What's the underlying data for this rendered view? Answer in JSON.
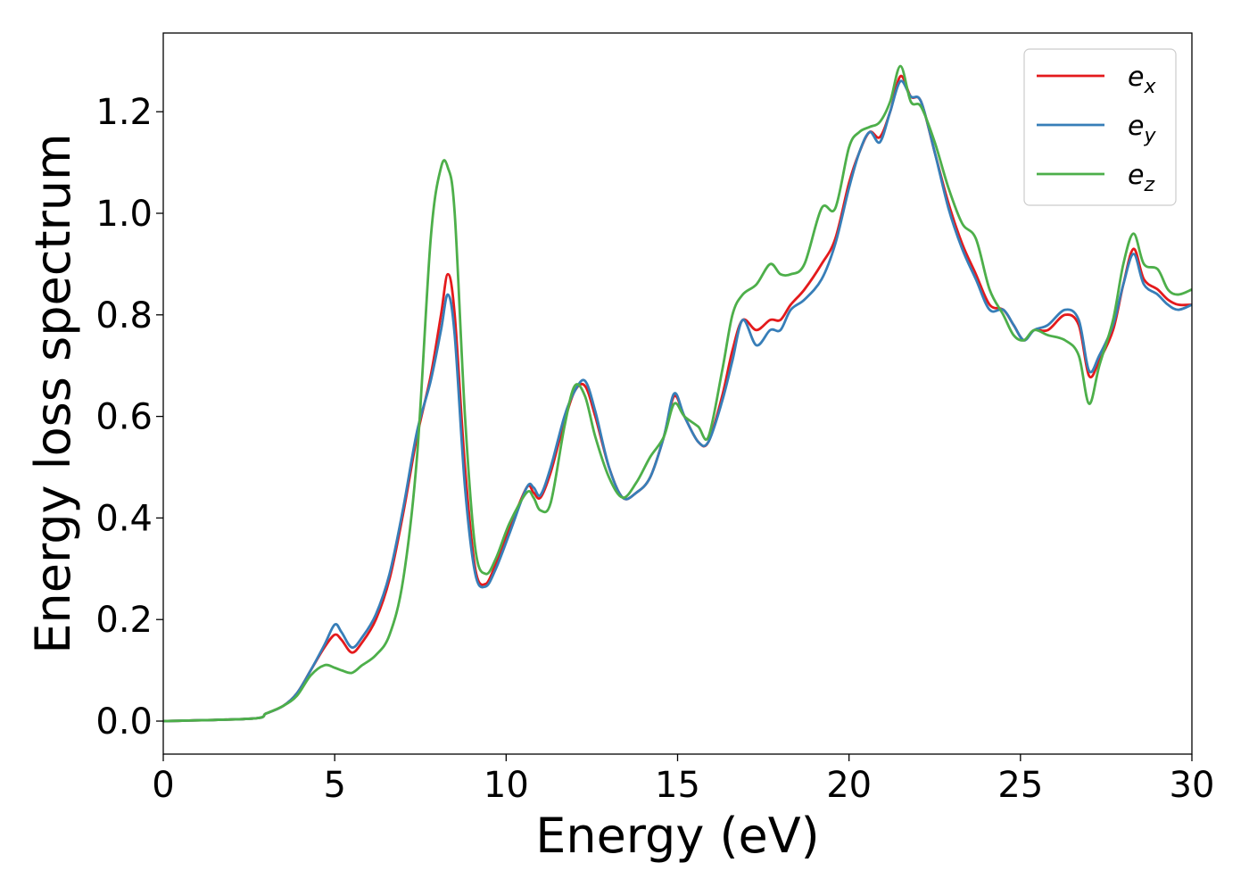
{
  "chart_data": {
    "type": "line",
    "title": "",
    "xlabel": "Energy (eV)",
    "ylabel": "Energy loss spectrum",
    "xlim": [
      0,
      30
    ],
    "ylim": [
      -0.065,
      1.355
    ],
    "xticks": [
      0,
      5,
      10,
      15,
      20,
      25,
      30
    ],
    "xtick_labels": [
      "0",
      "5",
      "10",
      "15",
      "20",
      "25",
      "30"
    ],
    "yticks": [
      0.0,
      0.2,
      0.4,
      0.6,
      0.8,
      1.0,
      1.2
    ],
    "ytick_labels": [
      "0.0",
      "0.2",
      "0.4",
      "0.6",
      "0.8",
      "1.0",
      "1.2"
    ],
    "grid": false,
    "legend_position": "top-right",
    "series": [
      {
        "name": "e_x",
        "label_base": "e",
        "label_sub": "x",
        "color": "#e41a1c",
        "x": [
          0,
          2.6,
          3.0,
          3.5,
          3.9,
          4.3,
          4.7,
          5.0,
          5.2,
          5.5,
          5.8,
          6.2,
          6.6,
          7.0,
          7.4,
          7.8,
          8.1,
          8.3,
          8.5,
          8.8,
          9.1,
          9.4,
          9.7,
          10.1,
          10.6,
          10.8,
          11.0,
          11.3,
          11.7,
          12.0,
          12.3,
          12.6,
          13.0,
          13.4,
          13.8,
          14.2,
          14.6,
          14.9,
          15.2,
          15.6,
          15.9,
          16.3,
          16.6,
          16.9,
          17.3,
          17.7,
          18.0,
          18.3,
          18.7,
          19.2,
          19.6,
          20.0,
          20.3,
          20.6,
          20.9,
          21.2,
          21.5,
          21.8,
          22.1,
          22.5,
          22.9,
          23.3,
          23.7,
          24.1,
          24.5,
          24.8,
          25.1,
          25.4,
          25.8,
          26.3,
          26.7,
          27.0,
          27.3,
          27.7,
          28.0,
          28.3,
          28.6,
          29.0,
          29.3,
          29.6,
          30.0
        ],
        "values": [
          0.0,
          0.005,
          0.015,
          0.03,
          0.055,
          0.1,
          0.145,
          0.17,
          0.16,
          0.135,
          0.155,
          0.2,
          0.28,
          0.41,
          0.56,
          0.68,
          0.8,
          0.88,
          0.8,
          0.5,
          0.3,
          0.27,
          0.31,
          0.38,
          0.46,
          0.45,
          0.44,
          0.49,
          0.59,
          0.65,
          0.66,
          0.6,
          0.5,
          0.44,
          0.45,
          0.48,
          0.56,
          0.64,
          0.6,
          0.55,
          0.55,
          0.64,
          0.73,
          0.79,
          0.77,
          0.79,
          0.79,
          0.82,
          0.85,
          0.9,
          0.95,
          1.06,
          1.12,
          1.16,
          1.15,
          1.2,
          1.27,
          1.23,
          1.22,
          1.12,
          1.02,
          0.94,
          0.88,
          0.82,
          0.81,
          0.78,
          0.75,
          0.77,
          0.77,
          0.8,
          0.78,
          0.68,
          0.71,
          0.77,
          0.86,
          0.93,
          0.87,
          0.85,
          0.83,
          0.82,
          0.82
        ]
      },
      {
        "name": "e_y",
        "label_base": "e",
        "label_sub": "y",
        "color": "#377eb8",
        "x": [
          0,
          2.6,
          3.0,
          3.5,
          3.9,
          4.3,
          4.7,
          5.0,
          5.2,
          5.5,
          5.8,
          6.2,
          6.6,
          7.0,
          7.4,
          7.8,
          8.1,
          8.3,
          8.5,
          8.8,
          9.1,
          9.4,
          9.7,
          10.1,
          10.6,
          10.8,
          11.0,
          11.3,
          11.7,
          12.0,
          12.3,
          12.6,
          13.0,
          13.4,
          13.8,
          14.2,
          14.6,
          14.9,
          15.2,
          15.6,
          15.9,
          16.3,
          16.6,
          16.9,
          17.3,
          17.7,
          18.0,
          18.3,
          18.7,
          19.2,
          19.6,
          20.0,
          20.3,
          20.6,
          20.9,
          21.2,
          21.5,
          21.8,
          22.1,
          22.5,
          22.9,
          23.3,
          23.7,
          24.1,
          24.5,
          24.8,
          25.1,
          25.4,
          25.8,
          26.3,
          26.7,
          27.0,
          27.3,
          27.7,
          28.0,
          28.3,
          28.6,
          29.0,
          29.3,
          29.6,
          30.0
        ],
        "values": [
          0.0,
          0.005,
          0.015,
          0.03,
          0.055,
          0.1,
          0.15,
          0.19,
          0.175,
          0.145,
          0.165,
          0.21,
          0.29,
          0.42,
          0.57,
          0.67,
          0.77,
          0.84,
          0.76,
          0.46,
          0.29,
          0.265,
          0.3,
          0.37,
          0.46,
          0.46,
          0.445,
          0.5,
          0.6,
          0.65,
          0.67,
          0.61,
          0.5,
          0.44,
          0.45,
          0.48,
          0.56,
          0.645,
          0.6,
          0.55,
          0.55,
          0.63,
          0.71,
          0.79,
          0.74,
          0.77,
          0.77,
          0.81,
          0.83,
          0.87,
          0.94,
          1.05,
          1.12,
          1.16,
          1.14,
          1.2,
          1.26,
          1.23,
          1.22,
          1.12,
          1.01,
          0.93,
          0.87,
          0.81,
          0.81,
          0.78,
          0.75,
          0.77,
          0.78,
          0.81,
          0.79,
          0.69,
          0.72,
          0.78,
          0.86,
          0.92,
          0.86,
          0.84,
          0.82,
          0.81,
          0.82
        ]
      },
      {
        "name": "e_z",
        "label_base": "e",
        "label_sub": "z",
        "color": "#4daf4a",
        "x": [
          0,
          2.6,
          3.0,
          3.5,
          3.9,
          4.3,
          4.7,
          5.0,
          5.2,
          5.5,
          5.8,
          6.2,
          6.6,
          7.0,
          7.4,
          7.8,
          8.1,
          8.3,
          8.5,
          8.8,
          9.1,
          9.4,
          9.7,
          10.1,
          10.6,
          10.8,
          11.0,
          11.3,
          11.7,
          12.0,
          12.3,
          12.6,
          13.0,
          13.4,
          13.8,
          14.2,
          14.6,
          14.9,
          15.2,
          15.6,
          15.9,
          16.3,
          16.6,
          16.9,
          17.3,
          17.7,
          18.0,
          18.3,
          18.7,
          19.2,
          19.6,
          20.0,
          20.3,
          20.6,
          20.9,
          21.2,
          21.5,
          21.8,
          22.1,
          22.5,
          22.9,
          23.3,
          23.7,
          24.1,
          24.5,
          24.8,
          25.1,
          25.4,
          25.8,
          26.3,
          26.7,
          27.0,
          27.3,
          27.7,
          28.0,
          28.3,
          28.6,
          29.0,
          29.3,
          29.6,
          30.0
        ],
        "values": [
          0.0,
          0.005,
          0.015,
          0.03,
          0.05,
          0.09,
          0.11,
          0.105,
          0.1,
          0.095,
          0.11,
          0.13,
          0.17,
          0.28,
          0.52,
          0.95,
          1.09,
          1.09,
          1.0,
          0.6,
          0.34,
          0.29,
          0.32,
          0.39,
          0.45,
          0.44,
          0.415,
          0.43,
          0.58,
          0.66,
          0.64,
          0.56,
          0.48,
          0.44,
          0.47,
          0.52,
          0.56,
          0.625,
          0.6,
          0.58,
          0.56,
          0.69,
          0.8,
          0.84,
          0.86,
          0.9,
          0.88,
          0.88,
          0.9,
          1.01,
          1.01,
          1.13,
          1.16,
          1.17,
          1.18,
          1.22,
          1.29,
          1.22,
          1.21,
          1.14,
          1.05,
          0.98,
          0.95,
          0.85,
          0.8,
          0.76,
          0.75,
          0.77,
          0.76,
          0.75,
          0.72,
          0.625,
          0.7,
          0.79,
          0.9,
          0.96,
          0.9,
          0.89,
          0.85,
          0.84,
          0.85
        ]
      }
    ]
  }
}
